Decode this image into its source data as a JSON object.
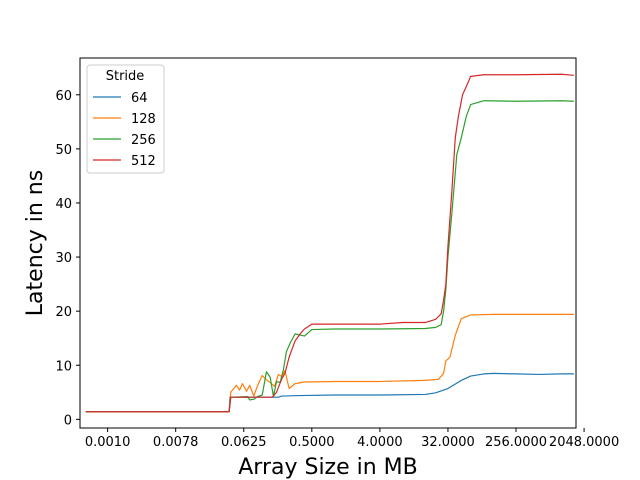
{
  "chart_data": {
    "type": "line",
    "xlabel": "Array Size in MB",
    "ylabel": "Latency in ns",
    "x_scale": "log2",
    "xlim": [
      0.00042,
      1600
    ],
    "ylim": [
      -1.6,
      66.8
    ],
    "x_ticks": [
      {
        "value": 0.0009765625,
        "label": "0.0010"
      },
      {
        "value": 0.0078125,
        "label": "0.0078"
      },
      {
        "value": 0.0625,
        "label": "0.0625"
      },
      {
        "value": 0.5,
        "label": "0.5000"
      },
      {
        "value": 4,
        "label": "4.0000"
      },
      {
        "value": 32,
        "label": "32.0000"
      },
      {
        "value": 256,
        "label": "256.0000"
      },
      {
        "value": 2048,
        "label": "2048.0000"
      }
    ],
    "y_ticks": [
      0,
      10,
      20,
      30,
      40,
      50,
      60
    ],
    "legend": {
      "title": "Stride",
      "position": "upper left"
    },
    "grid": false,
    "series": [
      {
        "name": "64",
        "color": "#1f77b4",
        "points": [
          [
            0.0005,
            1.4
          ],
          [
            0.04,
            1.4
          ],
          [
            0.041,
            4.1
          ],
          [
            0.18,
            4.1
          ],
          [
            0.2,
            4.3
          ],
          [
            0.35,
            4.4
          ],
          [
            1,
            4.5
          ],
          [
            4,
            4.5
          ],
          [
            16,
            4.6
          ],
          [
            22,
            4.9
          ],
          [
            32,
            5.7
          ],
          [
            48,
            7.2
          ],
          [
            64,
            8.0
          ],
          [
            96,
            8.4
          ],
          [
            128,
            8.5
          ],
          [
            256,
            8.4
          ],
          [
            512,
            8.3
          ],
          [
            1024,
            8.4
          ],
          [
            1500,
            8.4
          ]
        ]
      },
      {
        "name": "128",
        "color": "#ff7f0e",
        "points": [
          [
            0.0005,
            1.4
          ],
          [
            0.04,
            1.4
          ],
          [
            0.042,
            5.0
          ],
          [
            0.05,
            6.3
          ],
          [
            0.055,
            5.4
          ],
          [
            0.06,
            6.6
          ],
          [
            0.068,
            5.2
          ],
          [
            0.075,
            6.3
          ],
          [
            0.085,
            4.3
          ],
          [
            0.095,
            6.2
          ],
          [
            0.11,
            8.1
          ],
          [
            0.125,
            7.3
          ],
          [
            0.14,
            6.8
          ],
          [
            0.16,
            6.1
          ],
          [
            0.18,
            8.3
          ],
          [
            0.2,
            7.9
          ],
          [
            0.22,
            9.0
          ],
          [
            0.25,
            5.7
          ],
          [
            0.3,
            6.6
          ],
          [
            0.4,
            6.9
          ],
          [
            1,
            7.0
          ],
          [
            4,
            7.0
          ],
          [
            16,
            7.2
          ],
          [
            24,
            7.4
          ],
          [
            28,
            8.5
          ],
          [
            30,
            10.8
          ],
          [
            34,
            11.5
          ],
          [
            40,
            15.5
          ],
          [
            48,
            18.6
          ],
          [
            64,
            19.3
          ],
          [
            128,
            19.4
          ],
          [
            512,
            19.4
          ],
          [
            1500,
            19.4
          ]
        ]
      },
      {
        "name": "256",
        "color": "#2ca02c",
        "points": [
          [
            0.0005,
            1.4
          ],
          [
            0.04,
            1.4
          ],
          [
            0.042,
            4.1
          ],
          [
            0.07,
            4.2
          ],
          [
            0.075,
            3.6
          ],
          [
            0.085,
            3.7
          ],
          [
            0.095,
            4.2
          ],
          [
            0.11,
            4.5
          ],
          [
            0.125,
            8.8
          ],
          [
            0.14,
            7.8
          ],
          [
            0.155,
            4.2
          ],
          [
            0.17,
            7.0
          ],
          [
            0.19,
            6.8
          ],
          [
            0.21,
            9.2
          ],
          [
            0.23,
            12.5
          ],
          [
            0.26,
            14.2
          ],
          [
            0.3,
            15.8
          ],
          [
            0.4,
            15.4
          ],
          [
            0.5,
            16.6
          ],
          [
            1,
            16.7
          ],
          [
            4,
            16.7
          ],
          [
            16,
            16.8
          ],
          [
            22,
            17.0
          ],
          [
            26,
            17.5
          ],
          [
            28,
            20.0
          ],
          [
            30,
            24.0
          ],
          [
            32,
            30.0
          ],
          [
            36,
            38.0
          ],
          [
            42,
            49.0
          ],
          [
            48,
            52.0
          ],
          [
            56,
            56.0
          ],
          [
            64,
            58.2
          ],
          [
            96,
            58.9
          ],
          [
            256,
            58.8
          ],
          [
            1024,
            58.9
          ],
          [
            1500,
            58.8
          ]
        ]
      },
      {
        "name": "512",
        "color": "#d62728",
        "points": [
          [
            0.0005,
            1.4
          ],
          [
            0.04,
            1.4
          ],
          [
            0.042,
            4.1
          ],
          [
            0.15,
            4.1
          ],
          [
            0.17,
            5.0
          ],
          [
            0.2,
            7.5
          ],
          [
            0.22,
            8.5
          ],
          [
            0.25,
            11.5
          ],
          [
            0.3,
            14.5
          ],
          [
            0.35,
            15.8
          ],
          [
            0.4,
            16.7
          ],
          [
            0.5,
            17.6
          ],
          [
            1,
            17.6
          ],
          [
            4,
            17.6
          ],
          [
            8,
            17.9
          ],
          [
            16,
            17.9
          ],
          [
            22,
            18.5
          ],
          [
            26,
            19.5
          ],
          [
            28,
            22.0
          ],
          [
            30,
            25.0
          ],
          [
            32,
            32.0
          ],
          [
            36,
            42.0
          ],
          [
            40,
            52.0
          ],
          [
            44,
            56.0
          ],
          [
            50,
            60.0
          ],
          [
            58,
            62.0
          ],
          [
            64,
            63.4
          ],
          [
            96,
            63.7
          ],
          [
            256,
            63.7
          ],
          [
            1024,
            63.8
          ],
          [
            1500,
            63.6
          ]
        ]
      }
    ]
  }
}
